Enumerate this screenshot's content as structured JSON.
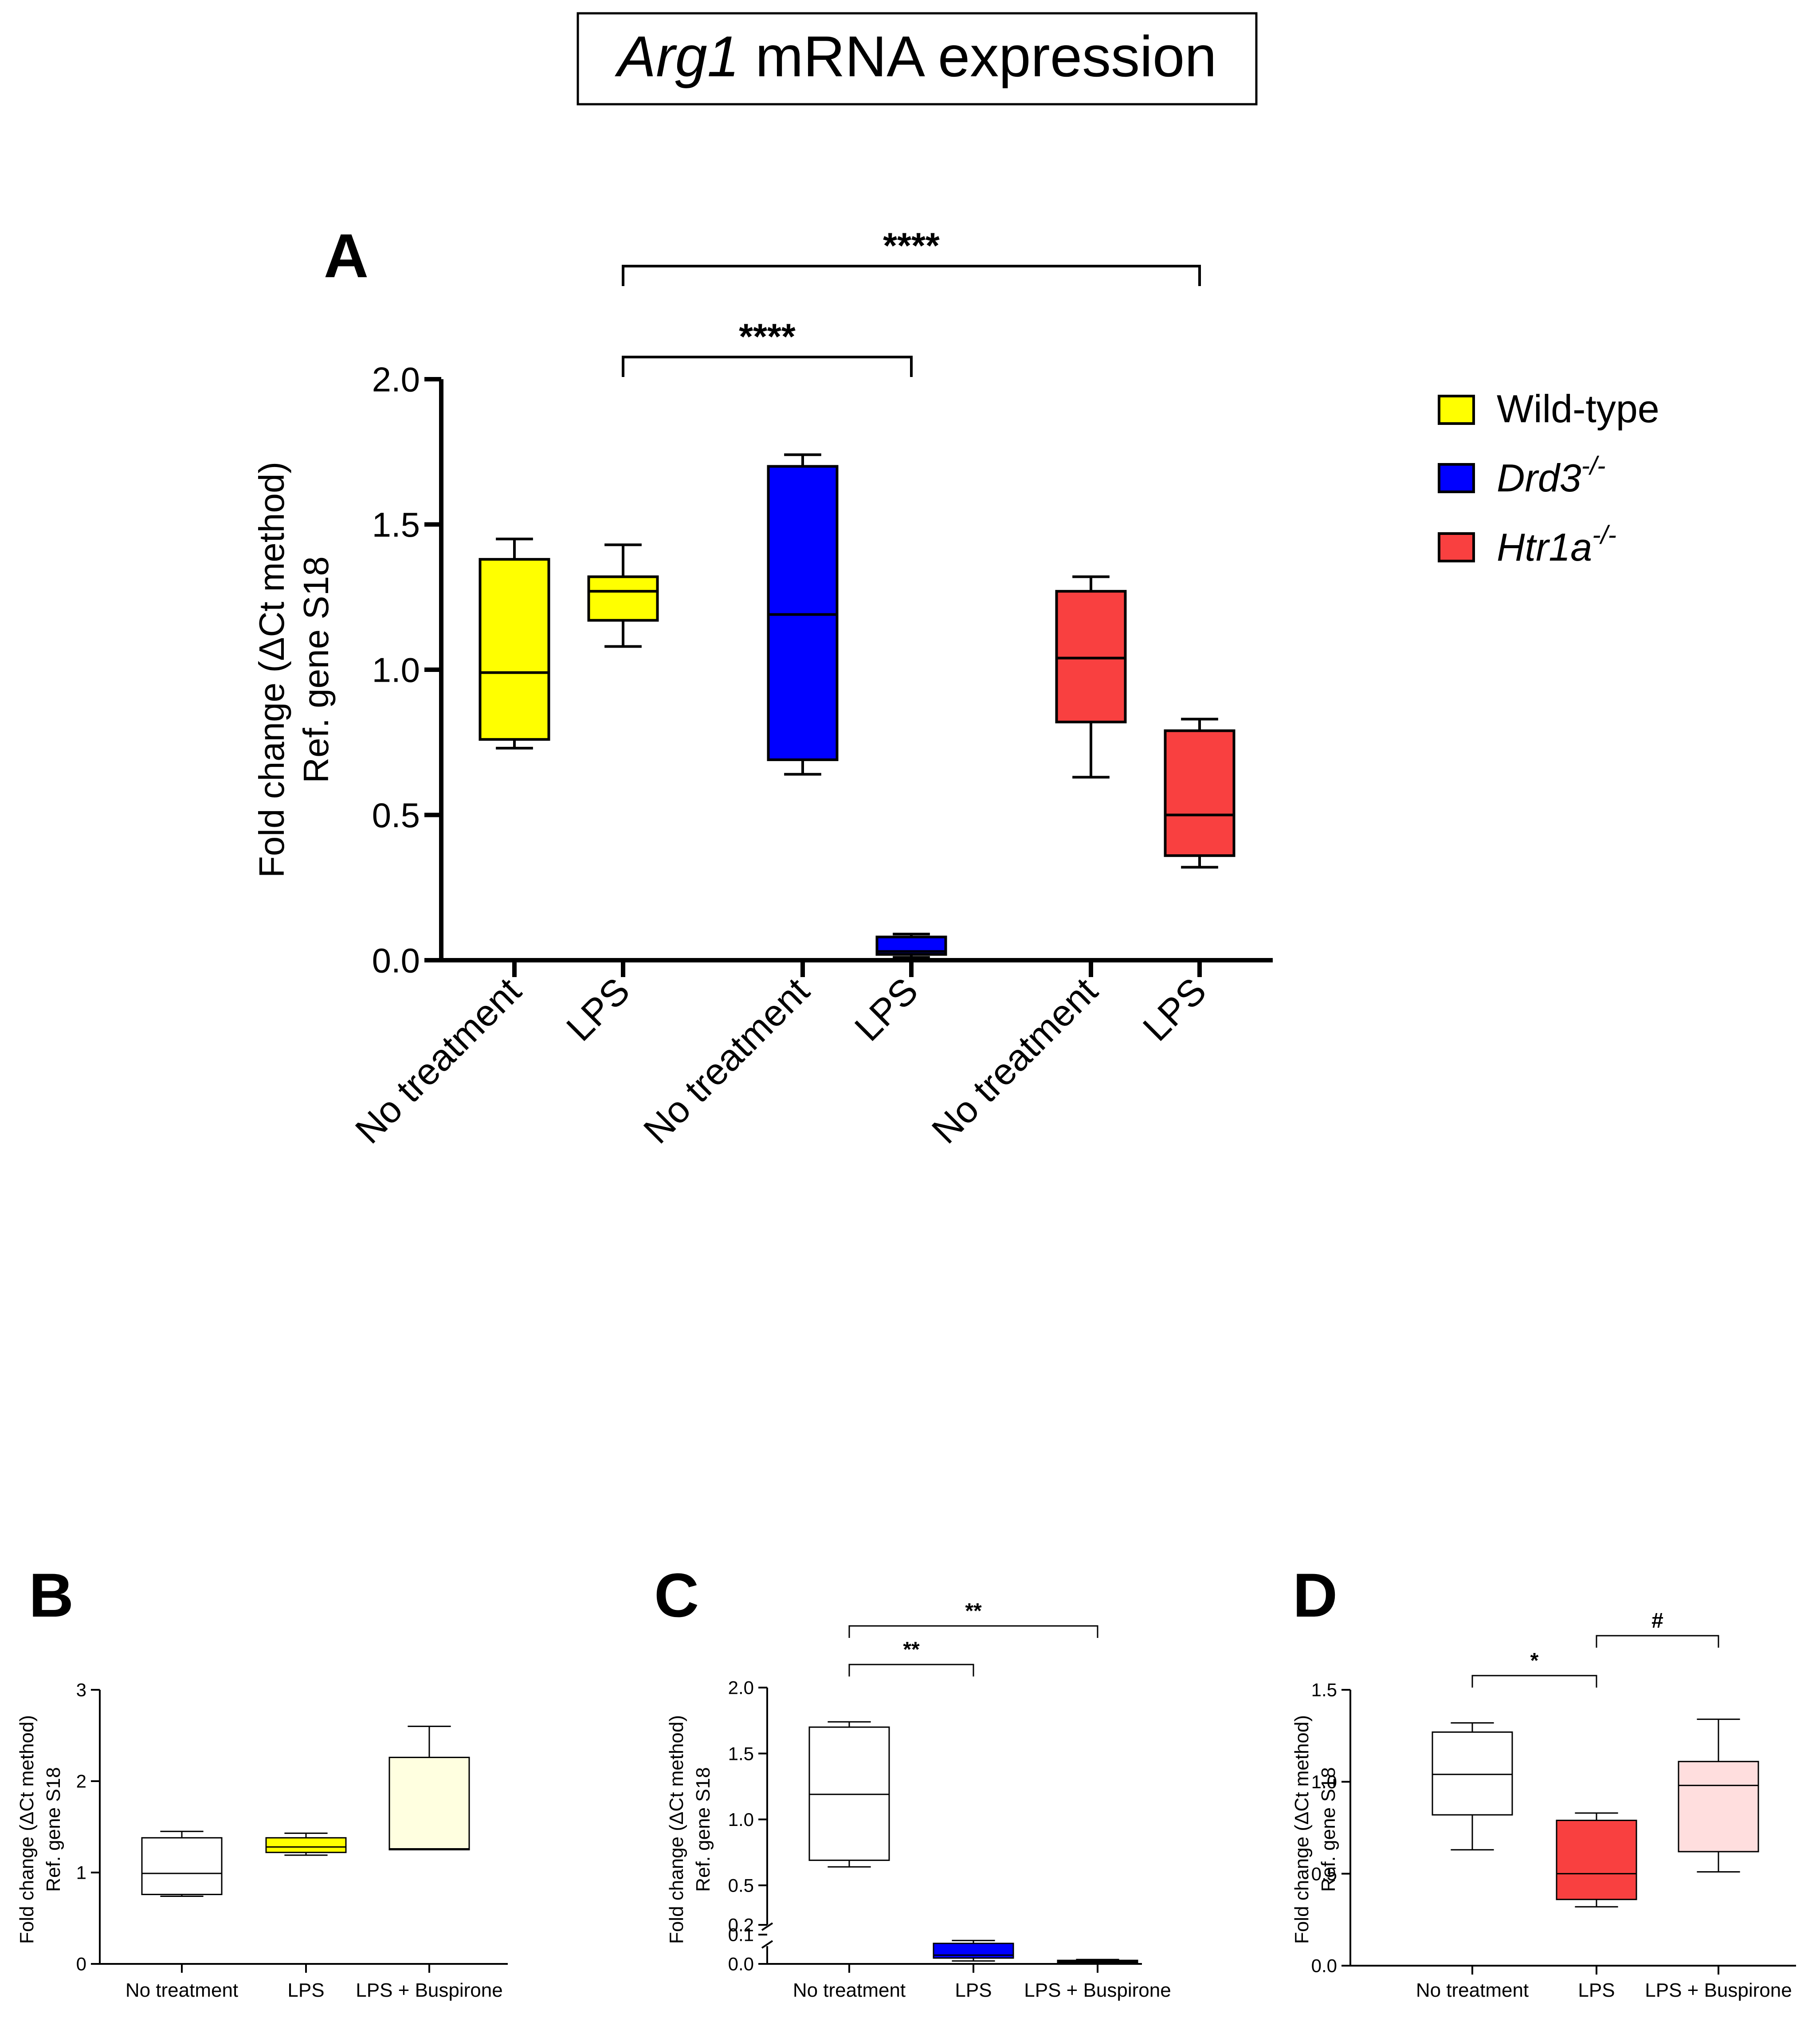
{
  "figure": {
    "title_gene": "Arg1",
    "title_rest": " mRNA expression"
  },
  "legend": {
    "items": [
      {
        "label": "Wild-type",
        "sup": "",
        "italic": false,
        "color": "#ffff00"
      },
      {
        "label": "Drd3",
        "sup": "-/-",
        "italic": true,
        "color": "#0000ff"
      },
      {
        "label": "Htr1a",
        "sup": "-/-",
        "italic": true,
        "color": "#f94040"
      }
    ]
  },
  "chart_data": [
    {
      "panel": "A",
      "type": "box",
      "ylabel_line1": "Fold change (ΔCt method)",
      "ylabel_line2": "Ref. gene S18",
      "ylim": [
        0,
        2.0
      ],
      "yticks": [
        "0.0",
        "0.5",
        "1.0",
        "1.5",
        "2.0"
      ],
      "categories": [
        "No treatment",
        "LPS",
        "No treatment",
        "LPS",
        "No treatment",
        "LPS"
      ],
      "boxes": [
        {
          "min": 0.73,
          "q1": 0.76,
          "median": 0.99,
          "q3": 1.38,
          "max": 1.45,
          "color": "#ffff00"
        },
        {
          "min": 1.08,
          "q1": 1.17,
          "median": 1.27,
          "q3": 1.32,
          "max": 1.43,
          "color": "#ffff00"
        },
        {
          "min": 0.64,
          "q1": 0.69,
          "median": 1.19,
          "q3": 1.7,
          "max": 1.74,
          "color": "#0000ff"
        },
        {
          "min": 0.01,
          "q1": 0.02,
          "median": 0.03,
          "q3": 0.08,
          "max": 0.09,
          "color": "#0000ff"
        },
        {
          "min": 0.63,
          "q1": 0.82,
          "median": 1.04,
          "q3": 1.27,
          "max": 1.32,
          "color": "#f94040"
        },
        {
          "min": 0.32,
          "q1": 0.36,
          "median": 0.5,
          "q3": 0.79,
          "max": 0.83,
          "color": "#f94040"
        }
      ],
      "annotations": [
        {
          "from": 1,
          "to": 3,
          "label": "****"
        },
        {
          "from": 1,
          "to": 5,
          "label": "****"
        }
      ]
    },
    {
      "panel": "B",
      "type": "box",
      "ylabel_line1": "Fold change (ΔCt method)",
      "ylabel_line2": "Ref. gene S18",
      "ylim": [
        0,
        3
      ],
      "yticks": [
        "0",
        "1",
        "2",
        "3"
      ],
      "categories": [
        "No treatment",
        "LPS",
        "LPS + Buspirone"
      ],
      "boxes": [
        {
          "min": 0.74,
          "q1": 0.76,
          "median": 0.99,
          "q3": 1.38,
          "max": 1.45,
          "color": "#ffffff"
        },
        {
          "min": 1.19,
          "q1": 1.22,
          "median": 1.28,
          "q3": 1.38,
          "max": 1.43,
          "color": "#ffff00"
        },
        {
          "min": 1.25,
          "q1": 1.25,
          "median": 1.26,
          "q3": 2.26,
          "max": 2.6,
          "color": "#ffffe0"
        }
      ],
      "annotations": []
    },
    {
      "panel": "C",
      "type": "box",
      "ylabel_line1": "Fold change (ΔCt method)",
      "ylabel_line2": "Ref. gene S18",
      "ylim": [
        0,
        2.0
      ],
      "axis_break": [
        0.1,
        0.2
      ],
      "yticks_lower": [
        "0.0",
        "0.1"
      ],
      "yticks_upper": [
        "0.2",
        "0.5",
        "1.0",
        "1.5",
        "2.0"
      ],
      "categories": [
        "No treatment",
        "LPS",
        "LPS + Buspirone"
      ],
      "boxes": [
        {
          "min": 0.64,
          "q1": 0.69,
          "median": 1.19,
          "q3": 1.7,
          "max": 1.74,
          "color": "#ffffff"
        },
        {
          "min": 0.01,
          "q1": 0.02,
          "median": 0.03,
          "q3": 0.07,
          "max": 0.08,
          "color": "#0000ff"
        },
        {
          "min": 0.003,
          "q1": 0.005,
          "median": 0.008,
          "q3": 0.012,
          "max": 0.015,
          "color": "#e6e6ff"
        }
      ],
      "annotations": [
        {
          "from": 0,
          "to": 1,
          "label": "**"
        },
        {
          "from": 0,
          "to": 2,
          "label": "**"
        }
      ]
    },
    {
      "panel": "D",
      "type": "box",
      "ylabel_line1": "Fold change (ΔCt method)",
      "ylabel_line2": "Ref. gene S18",
      "ylim": [
        0,
        1.5
      ],
      "yticks": [
        "0.0",
        "0.5",
        "1.0",
        "1.5"
      ],
      "categories": [
        "No treatment",
        "LPS",
        "LPS + Buspirone"
      ],
      "boxes": [
        {
          "min": 0.63,
          "q1": 0.82,
          "median": 1.04,
          "q3": 1.27,
          "max": 1.32,
          "color": "#ffffff"
        },
        {
          "min": 0.32,
          "q1": 0.36,
          "median": 0.5,
          "q3": 0.79,
          "max": 0.83,
          "color": "#f94040"
        },
        {
          "min": 0.51,
          "q1": 0.62,
          "median": 0.98,
          "q3": 1.11,
          "max": 1.34,
          "color": "#ffdede"
        }
      ],
      "annotations": [
        {
          "from": 0,
          "to": 1,
          "label": "*"
        },
        {
          "from": 1,
          "to": 2,
          "label": "#"
        }
      ]
    }
  ]
}
